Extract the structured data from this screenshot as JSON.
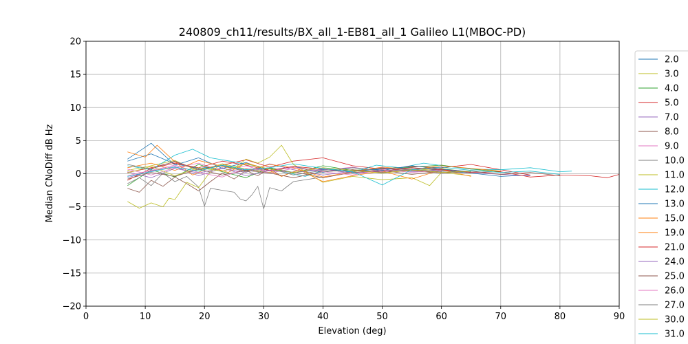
{
  "chart_data": {
    "type": "line",
    "title": "240809_ch11/results/BX_all_1-EB81_all_1 Galileo L1(MBOC-PD)",
    "xlabel": "Elevation (deg)",
    "ylabel": "Median CNoDiff dB Hz",
    "xlim": [
      0,
      90
    ],
    "ylim": [
      -20,
      20
    ],
    "xticks": [
      0,
      10,
      20,
      30,
      40,
      50,
      60,
      70,
      80,
      90
    ],
    "yticks": [
      -20,
      -15,
      -10,
      -5,
      0,
      5,
      10,
      15,
      20
    ],
    "grid": true,
    "legend_position": "right, outside plot (clipped at bottom)",
    "series": [
      {
        "name": "2.0",
        "color": "#1f77b4",
        "x": [
          7,
          11,
          15,
          19,
          23,
          27,
          31,
          35,
          40,
          45,
          50,
          55,
          60,
          65,
          70,
          75
        ],
        "y": [
          1.9,
          3.0,
          1.5,
          0.8,
          1.2,
          0.5,
          0.9,
          0.2,
          0.6,
          0.4,
          0.7,
          0.9,
          0.5,
          0.1,
          -0.4,
          -0.2
        ]
      },
      {
        "name": "3.0",
        "color": "#bcbd22",
        "x": [
          7,
          11,
          15,
          19,
          23,
          27,
          31,
          35,
          40,
          45,
          50,
          55,
          60,
          65
        ],
        "y": [
          0.5,
          1.2,
          2.0,
          0.4,
          1.5,
          0.7,
          0.2,
          1.1,
          0.3,
          0.6,
          0.1,
          0.5,
          0.8,
          0.2
        ]
      },
      {
        "name": "4.0",
        "color": "#2ca02c",
        "x": [
          7,
          11,
          15,
          19,
          23,
          27,
          31,
          35,
          40,
          45,
          50,
          55,
          60,
          65,
          70
        ],
        "y": [
          -1.8,
          0.6,
          -0.5,
          1.4,
          0.3,
          -0.6,
          0.9,
          0.1,
          1.2,
          0.5,
          0.8,
          1.0,
          1.3,
          0.7,
          0.3
        ]
      },
      {
        "name": "5.0",
        "color": "#d62728",
        "x": [
          7,
          11,
          15,
          19,
          23,
          27,
          31,
          35,
          40,
          45,
          50,
          55,
          60,
          65,
          70,
          75
        ],
        "y": [
          0.2,
          0.9,
          1.8,
          0.6,
          1.3,
          2.1,
          1.0,
          1.9,
          2.4,
          1.2,
          0.7,
          1.1,
          0.9,
          1.4,
          0.6,
          -0.2
        ]
      },
      {
        "name": "7.0",
        "color": "#9467bd",
        "x": [
          7,
          11,
          15,
          19,
          23,
          27,
          31,
          35,
          40,
          45,
          50,
          55,
          60,
          65,
          70,
          75
        ],
        "y": [
          -0.6,
          0.4,
          1.1,
          -0.3,
          0.8,
          0.2,
          1.5,
          0.6,
          -0.2,
          0.4,
          0.9,
          0.3,
          0.6,
          0.2,
          -0.1,
          -0.3
        ]
      },
      {
        "name": "8.0",
        "color": "#8c564b",
        "x": [
          7,
          9,
          11,
          13,
          15,
          17,
          19,
          21,
          23,
          25,
          27,
          29,
          31,
          33,
          35,
          40,
          45,
          50,
          55,
          60
        ],
        "y": [
          -2.2,
          -2.8,
          -1.0,
          -1.9,
          -0.5,
          -1.5,
          -2.6,
          -1.2,
          0.1,
          -0.8,
          0.5,
          -0.3,
          0.8,
          -0.4,
          0.3,
          -0.6,
          0.2,
          0.5,
          -0.1,
          0.4
        ]
      },
      {
        "name": "9.0",
        "color": "#e377c2",
        "x": [
          7,
          11,
          15,
          19,
          23,
          27,
          31,
          35,
          40,
          45,
          50,
          55,
          60
        ],
        "y": [
          0.7,
          -0.2,
          0.9,
          1.6,
          0.4,
          1.2,
          0.1,
          0.8,
          0.5,
          1.0,
          0.3,
          0.7,
          0.9
        ]
      },
      {
        "name": "10.0",
        "color": "#7f7f7f",
        "x": [
          7,
          9,
          11,
          13,
          15,
          17,
          19,
          20,
          21,
          23,
          25,
          26,
          27,
          28,
          29,
          30,
          31,
          33,
          35,
          40
        ],
        "y": [
          -1.5,
          -0.6,
          -1.8,
          0.1,
          -1.2,
          -0.4,
          -2.0,
          -4.9,
          -2.2,
          -2.5,
          -2.8,
          -3.8,
          -4.1,
          -3.2,
          -1.9,
          -5.3,
          -2.1,
          -2.6,
          -1.2,
          -0.5
        ]
      },
      {
        "name": "11.0",
        "color": "#bcbd22",
        "x": [
          7,
          9,
          11,
          13,
          14,
          15,
          17,
          19,
          21,
          23,
          25,
          27,
          29,
          31,
          33,
          35,
          40,
          45,
          50,
          55,
          58,
          60,
          65
        ],
        "y": [
          -4.2,
          -5.2,
          -4.4,
          -5.0,
          -3.7,
          -3.9,
          -1.3,
          -2.1,
          0.3,
          1.5,
          0.8,
          2.2,
          1.6,
          2.5,
          4.3,
          1.4,
          -1.3,
          -0.4,
          -0.9,
          -0.6,
          -1.8,
          0.2,
          -0.3
        ]
      },
      {
        "name": "12.0",
        "color": "#17becf",
        "x": [
          7,
          11,
          15,
          18,
          21,
          25,
          29,
          33,
          37,
          41,
          45,
          49,
          53,
          57,
          61,
          65,
          70,
          75,
          80,
          82
        ],
        "y": [
          1.2,
          0.6,
          2.8,
          3.7,
          2.4,
          1.8,
          1.1,
          0.3,
          -0.4,
          0.8,
          0.2,
          1.3,
          0.9,
          1.6,
          1.1,
          0.7,
          0.6,
          0.9,
          0.3,
          0.4
        ]
      },
      {
        "name": "13.0",
        "color": "#1f77b4",
        "x": [
          7,
          11,
          15,
          19,
          23,
          27,
          31,
          35,
          40,
          45,
          50,
          55,
          60,
          65
        ],
        "y": [
          2.2,
          4.6,
          1.3,
          2.4,
          0.8,
          1.7,
          0.4,
          1.1,
          0.2,
          0.9,
          0.5,
          1.2,
          0.7,
          0.3
        ]
      },
      {
        "name": "15.0",
        "color": "#ff7f0e",
        "x": [
          7,
          10,
          12,
          15,
          18,
          21,
          24,
          27,
          30,
          33,
          36,
          40,
          45,
          50,
          55,
          60,
          65
        ],
        "y": [
          3.3,
          2.5,
          4.3,
          1.8,
          -0.2,
          1.0,
          0.2,
          1.6,
          0.9,
          -0.4,
          0.6,
          -1.2,
          -0.3,
          0.4,
          -0.8,
          0.6,
          -0.4
        ]
      },
      {
        "name": "19.0",
        "color": "#ff7f0e",
        "x": [
          7,
          11,
          15,
          19,
          23,
          27,
          31,
          35,
          40,
          45,
          50,
          55,
          60,
          65,
          70
        ],
        "y": [
          0.9,
          1.6,
          0.5,
          2.0,
          1.1,
          0.4,
          1.4,
          0.9,
          -0.5,
          0.3,
          1.0,
          0.6,
          1.2,
          0.8,
          0.4
        ]
      },
      {
        "name": "21.0",
        "color": "#d62728",
        "x": [
          7,
          11,
          15,
          19,
          23,
          27,
          31,
          35,
          40,
          45,
          50,
          55,
          60,
          65,
          70,
          75,
          80,
          85,
          88,
          90
        ],
        "y": [
          -1.0,
          0.8,
          1.6,
          0.9,
          1.9,
          1.3,
          0.5,
          1.1,
          0.7,
          0.1,
          0.4,
          0.9,
          0.6,
          0.2,
          0.3,
          -0.5,
          -0.2,
          -0.3,
          -0.6,
          -0.1
        ]
      },
      {
        "name": "24.0",
        "color": "#9467bd",
        "x": [
          7,
          11,
          15,
          19,
          23,
          27,
          31,
          35,
          40,
          45,
          50,
          55,
          60
        ],
        "y": [
          0.3,
          -0.6,
          0.8,
          0.1,
          0.9,
          -0.3,
          0.5,
          0.2,
          0.7,
          0.1,
          0.4,
          0.6,
          0.2
        ]
      },
      {
        "name": "25.0",
        "color": "#8c564b",
        "x": [
          7,
          11,
          15,
          19,
          23,
          27,
          31,
          35,
          40,
          45,
          50,
          55,
          60,
          65,
          70,
          75,
          80
        ],
        "y": [
          -0.8,
          0.2,
          -0.4,
          0.7,
          -0.2,
          0.5,
          0.1,
          -0.6,
          0.3,
          0.6,
          0.2,
          0.5,
          0.1,
          0.4,
          -0.1,
          0.2,
          -0.3
        ]
      },
      {
        "name": "26.0",
        "color": "#e377c2",
        "x": [
          7,
          11,
          15,
          19,
          23,
          27,
          31,
          35,
          40,
          45,
          50,
          55,
          60
        ],
        "y": [
          -0.3,
          0.5,
          1.3,
          0.2,
          -0.5,
          0.8,
          0.4,
          1.0,
          0.3,
          -0.2,
          0.6,
          0.2,
          0.5
        ]
      },
      {
        "name": "27.0",
        "color": "#7f7f7f",
        "x": [
          7,
          11,
          15,
          19,
          23,
          27,
          31,
          35,
          40,
          45,
          50,
          55,
          60,
          65
        ],
        "y": [
          1.4,
          0.7,
          1.9,
          0.6,
          1.2,
          0.3,
          0.8,
          -0.2,
          0.5,
          0.9,
          0.4,
          0.7,
          0.3,
          0.1
        ]
      },
      {
        "name": "30.0",
        "color": "#bcbd22",
        "x": [
          7,
          11,
          15,
          19,
          23,
          27,
          31,
          35,
          40,
          45,
          50,
          55,
          60,
          65
        ],
        "y": [
          0.1,
          1.1,
          -0.3,
          0.9,
          0.4,
          1.5,
          0.7,
          0.2,
          0.9,
          0.5,
          0.1,
          0.6,
          0.2,
          0.4
        ]
      },
      {
        "name": "31.0",
        "color": "#17becf",
        "x": [
          7,
          11,
          15,
          19,
          23,
          27,
          31,
          35,
          40,
          45,
          50,
          55,
          60,
          65,
          70,
          75,
          80
        ],
        "y": [
          -0.4,
          0.3,
          1.0,
          0.4,
          1.3,
          0.6,
          0.9,
          1.5,
          0.8,
          0.3,
          -1.7,
          0.6,
          1.0,
          0.5,
          0.2,
          0.4,
          -0.1
        ]
      }
    ]
  }
}
